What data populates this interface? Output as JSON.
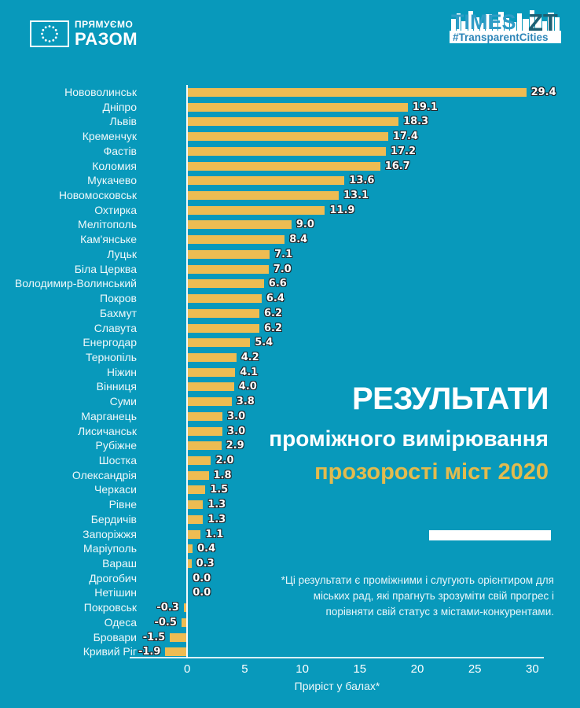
{
  "header": {
    "eu_logo": {
      "line1": "ПРЯМУЄМО",
      "line2": "РАЗОМ"
    },
    "times_logo": {
      "brand": "TIMES",
      "suffix": "ZT",
      "hashtag": "#TransparentCities"
    }
  },
  "title": {
    "line1": "РЕЗУЛЬТАТИ",
    "line2": "проміжного вимірювання",
    "line3": "прозорості міст 2020"
  },
  "footnote": {
    "lines": [
      "*Ці результати є проміжними і слугують орієнтиром для",
      "міських рад, які прагнуть зрозуміти свій прогрес і",
      "порівняти свій статус з містами-конкурентами."
    ]
  },
  "colors": {
    "background": "#0899BB",
    "bar": "#EEBC52",
    "accent_gold": "#E2BB4E",
    "text": "#FFFFFF",
    "value_outline": "#20262B"
  },
  "chart_data": {
    "type": "bar",
    "orientation": "horizontal",
    "title": "Результати проміжного вимірювання прозорості міст 2020",
    "xlabel": "Приріст у балах*",
    "xlim": [
      -5,
      31
    ],
    "ticks": [
      0,
      5,
      10,
      15,
      20,
      25,
      30
    ],
    "grid": false,
    "legend": false,
    "cities": [
      {
        "name": "Нововолинськ",
        "value": 29.4,
        "label": "29.4"
      },
      {
        "name": "Дніпро",
        "value": 19.1,
        "label": "19.1"
      },
      {
        "name": "Львів",
        "value": 18.3,
        "label": "18.3"
      },
      {
        "name": "Кременчук",
        "value": 17.4,
        "label": "17.4"
      },
      {
        "name": "Фастів",
        "value": 17.2,
        "label": "17.2"
      },
      {
        "name": "Коломия",
        "value": 16.7,
        "label": "16.7"
      },
      {
        "name": "Мукачево",
        "value": 13.6,
        "label": "13.6"
      },
      {
        "name": "Новомосковськ",
        "value": 13.1,
        "label": "13.1"
      },
      {
        "name": "Охтирка",
        "value": 11.9,
        "label": "11.9"
      },
      {
        "name": "Мелітополь",
        "value": 9.0,
        "label": "9.0"
      },
      {
        "name": "Кам'янське",
        "value": 8.4,
        "label": "8.4"
      },
      {
        "name": "Луцьк",
        "value": 7.1,
        "label": "7.1"
      },
      {
        "name": "Біла Церква",
        "value": 7.0,
        "label": "7.0"
      },
      {
        "name": "Володимир-Волинський",
        "value": 6.6,
        "label": "6.6"
      },
      {
        "name": "Покров",
        "value": 6.4,
        "label": "6.4"
      },
      {
        "name": "Бахмут",
        "value": 6.2,
        "label": "6.2"
      },
      {
        "name": "Славута",
        "value": 6.2,
        "label": "6.2"
      },
      {
        "name": "Енергодар",
        "value": 5.4,
        "label": "5.4"
      },
      {
        "name": "Тернопіль",
        "value": 4.2,
        "label": "4.2"
      },
      {
        "name": "Ніжин",
        "value": 4.1,
        "label": "4.1"
      },
      {
        "name": "Вінниця",
        "value": 4.0,
        "label": "4.0"
      },
      {
        "name": "Суми",
        "value": 3.8,
        "label": "3.8"
      },
      {
        "name": "Марганець",
        "value": 3.0,
        "label": "3.0"
      },
      {
        "name": "Лисичанськ",
        "value": 3.0,
        "label": "3.0"
      },
      {
        "name": "Рубіжне",
        "value": 2.9,
        "label": "2.9"
      },
      {
        "name": "Шостка",
        "value": 2.0,
        "label": "2.0"
      },
      {
        "name": "Олександрія",
        "value": 1.8,
        "label": "1.8"
      },
      {
        "name": "Черкаси",
        "value": 1.5,
        "label": "1.5"
      },
      {
        "name": "Рівне",
        "value": 1.3,
        "label": "1.3"
      },
      {
        "name": "Бердичів",
        "value": 1.3,
        "label": "1.3"
      },
      {
        "name": "Запоріжжя",
        "value": 1.1,
        "label": "1.1"
      },
      {
        "name": "Маріуполь",
        "value": 0.4,
        "label": "0.4"
      },
      {
        "name": "Вараш",
        "value": 0.3,
        "label": "0.3"
      },
      {
        "name": "Дрогобич",
        "value": 0.0,
        "label": "0.0"
      },
      {
        "name": "Нетішин",
        "value": 0.0,
        "label": "0.0"
      },
      {
        "name": "Покровськ",
        "value": -0.3,
        "label": "-0.3"
      },
      {
        "name": "Одеса",
        "value": -0.5,
        "label": "-0.5"
      },
      {
        "name": "Бровари",
        "value": -1.5,
        "label": "-1.5"
      },
      {
        "name": "Кривий Ріг",
        "value": -1.9,
        "label": "-1.9"
      }
    ]
  }
}
